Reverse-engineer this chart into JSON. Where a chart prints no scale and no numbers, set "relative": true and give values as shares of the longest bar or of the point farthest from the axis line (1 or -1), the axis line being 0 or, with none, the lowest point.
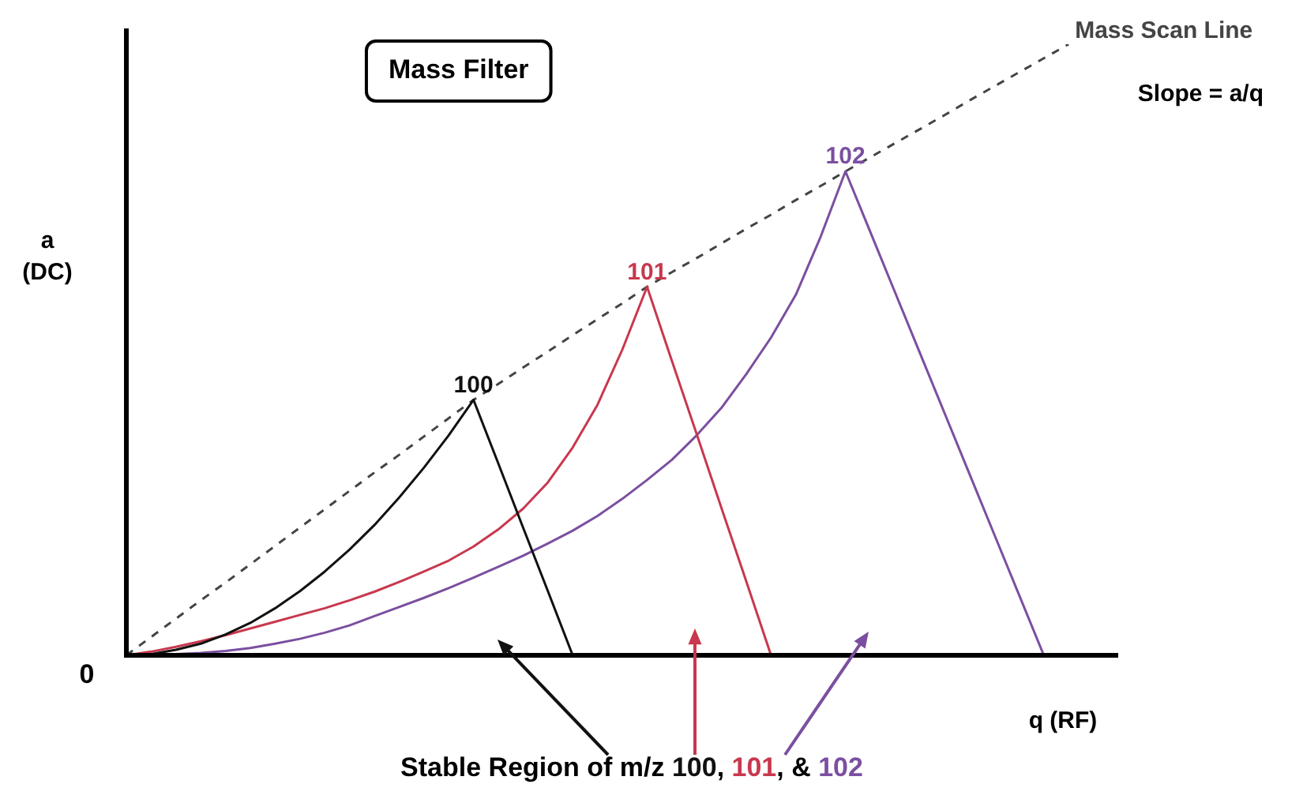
{
  "chart_data": {
    "type": "line",
    "relative": true,
    "title": "Mass Filter",
    "ylabel": "a\n(DC)",
    "xlabel": "q (RF)",
    "grid": false,
    "legend": false,
    "marker": "none",
    "tick_labels": false,
    "categories": [
      null,
      null,
      null,
      null,
      null,
      null,
      null,
      null,
      null,
      null,
      null,
      null,
      null,
      null,
      null,
      null,
      null,
      null,
      null,
      null,
      null,
      null,
      null,
      null,
      null,
      null,
      null,
      null,
      null,
      null,
      null,
      null,
      null,
      null,
      null,
      null,
      null,
      null,
      null,
      null,
      null
    ],
    "annotations": [
      "0",
      "Slope = a/q",
      "Stable Region of m/z 100, 101, & 102"
    ],
    "series": [
      {
        "name": "100",
        "color": "#111111",
        "values": [
          0,
          0.002,
          0.009,
          0.019,
          0.034,
          0.053,
          0.077,
          0.105,
          0.137,
          0.173,
          0.213,
          0.258,
          0.307,
          0.36,
          0.418,
          0.314,
          0.209,
          0.105,
          0,
          null,
          null,
          null,
          null,
          null,
          null,
          null,
          null,
          null,
          null,
          null,
          null,
          null,
          null,
          null,
          null,
          null,
          null,
          null,
          null,
          null,
          null
        ]
      },
      {
        "name": "101",
        "color": "#c8384e",
        "values": [
          0,
          0.006,
          0.014,
          0.023,
          0.033,
          0.044,
          0.055,
          0.066,
          0.077,
          0.09,
          0.104,
          0.12,
          0.137,
          0.155,
          0.178,
          0.206,
          0.24,
          0.283,
          0.34,
          0.41,
          0.5,
          0.603,
          0.482,
          0.362,
          0.241,
          0.121,
          0,
          null,
          null,
          null,
          null,
          null,
          null,
          null,
          null,
          null,
          null,
          null,
          null,
          null,
          null
        ]
      },
      {
        "name": "102",
        "color": "#7b4fa0",
        "values": [
          0,
          0,
          0.002,
          0.004,
          0.007,
          0.012,
          0.019,
          0.027,
          0.037,
          0.049,
          0.064,
          0.079,
          0.094,
          0.11,
          0.127,
          0.145,
          0.163,
          0.183,
          0.204,
          0.228,
          0.256,
          0.287,
          0.32,
          0.36,
          0.405,
          0.46,
          0.52,
          0.59,
          0.685,
          0.792,
          0.693,
          0.594,
          0.495,
          0.396,
          0.297,
          0.198,
          0.099,
          0,
          null,
          null,
          null
        ]
      },
      {
        "name": "Mass Scan Line",
        "color": "#444444",
        "line_style": "dashed",
        "values": [
          0,
          0.03,
          0.06,
          0.09,
          0.119,
          0.149,
          0.179,
          0.209,
          0.239,
          0.269,
          0.299,
          0.328,
          0.358,
          0.388,
          0.418,
          0.444,
          0.471,
          0.497,
          0.524,
          0.55,
          0.576,
          0.603,
          0.627,
          0.65,
          0.674,
          0.698,
          0.721,
          0.745,
          0.768,
          0.792,
          0.815,
          0.838,
          0.861,
          0.884,
          0.908,
          0.931,
          0.954,
          0.977,
          1,
          null,
          null
        ]
      }
    ]
  }
}
